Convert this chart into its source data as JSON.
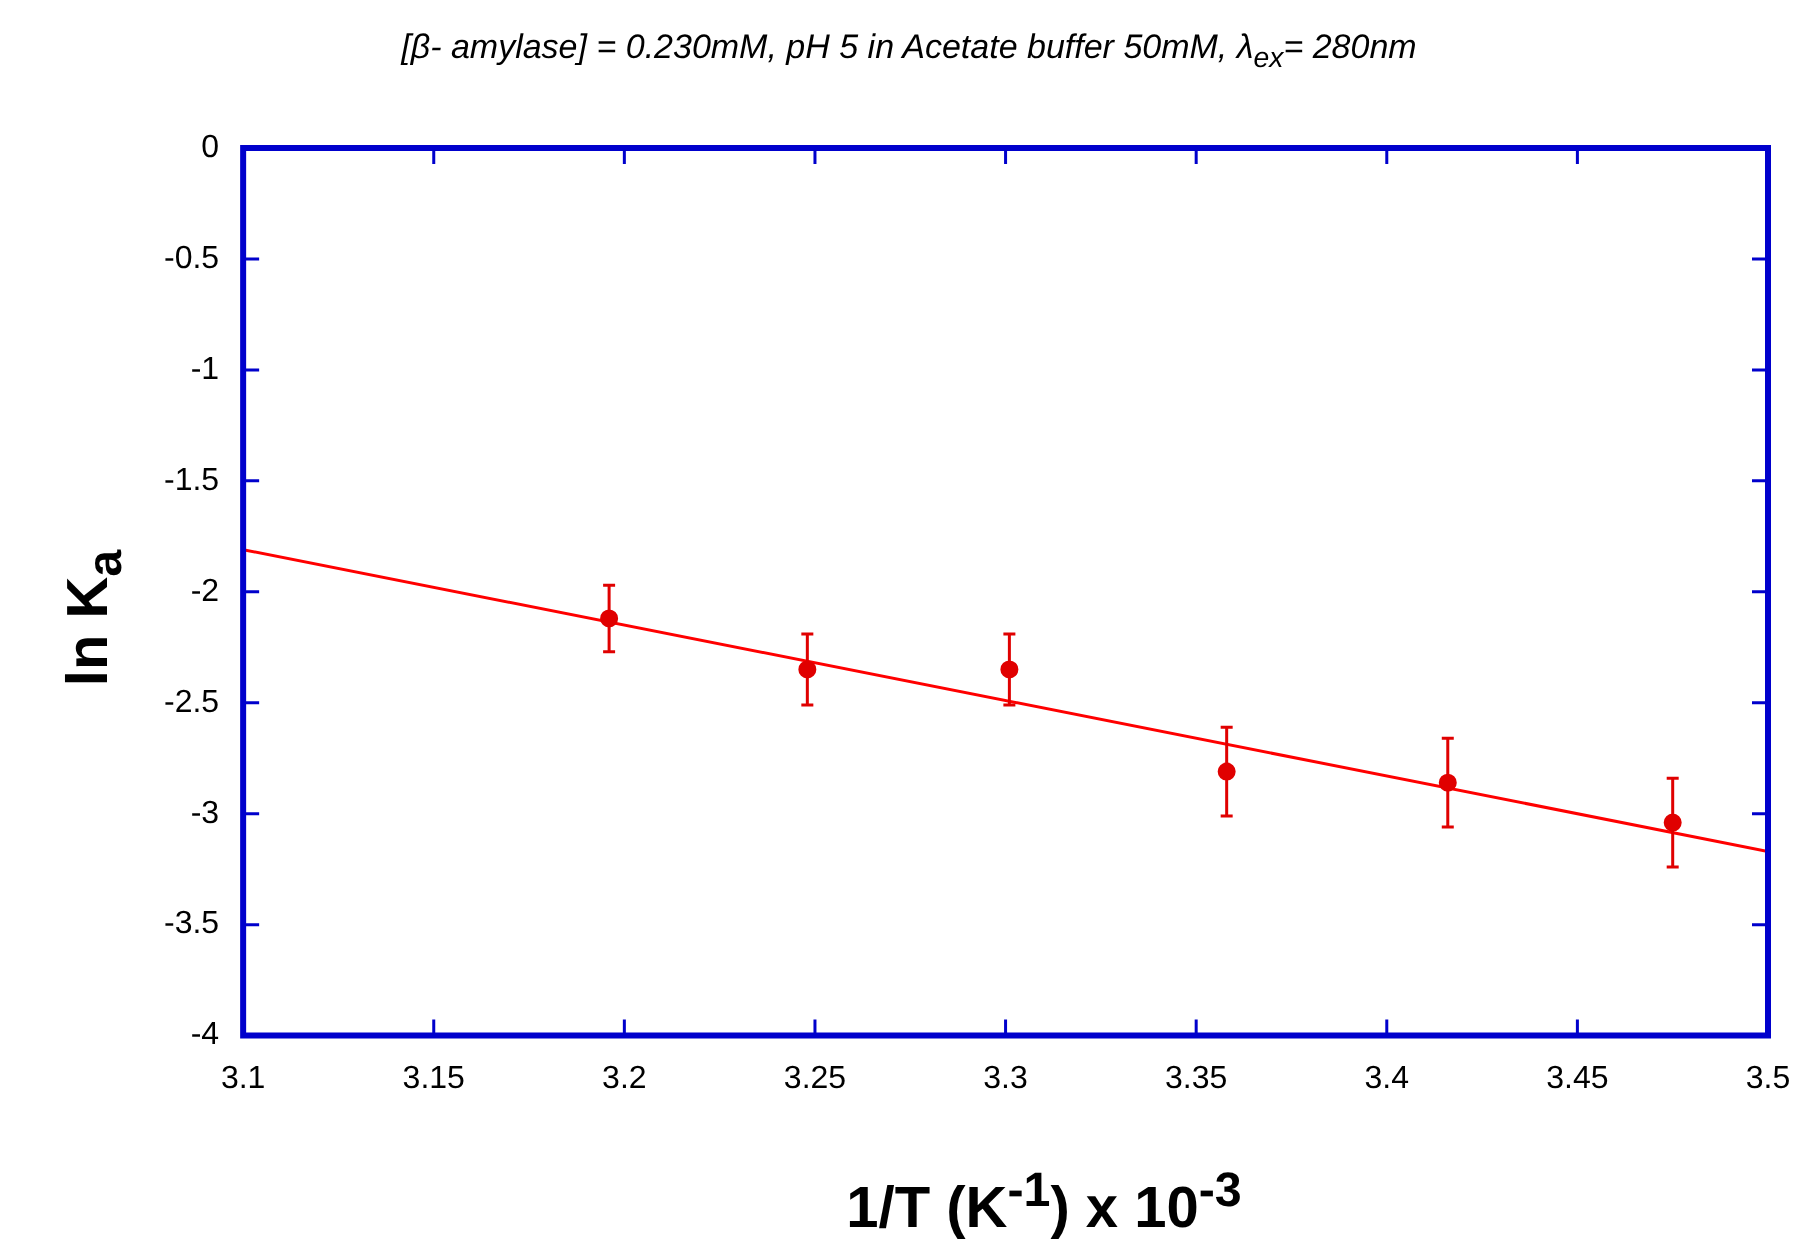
{
  "chart_data": {
    "type": "scatter",
    "title": "[β- amylase] = 0.230mM, pH 5 in Acetate buffer 50mM, λ$_{ex}$= 280nm",
    "xlabel": "1/T (K$^{-1}$) x 10$^{-3}$",
    "ylabel": "ln K$_{a}$",
    "xlim": [
      3.1,
      3.5
    ],
    "ylim": [
      -4,
      0
    ],
    "xticks": [
      3.1,
      3.15,
      3.2,
      3.25,
      3.3,
      3.35,
      3.4,
      3.45,
      3.5
    ],
    "yticks": [
      -4,
      -3.5,
      -3,
      -2.5,
      -2,
      -1.5,
      -1,
      -0.5,
      0
    ],
    "marker": "circle",
    "grid": false,
    "series": [
      {
        "type": "scatter",
        "color": "#e00000",
        "x": [
          3.196,
          3.248,
          3.301,
          3.358,
          3.416,
          3.475
        ],
        "values": [
          -2.12,
          -2.35,
          -2.35,
          -2.81,
          -2.86,
          -3.04
        ],
        "errors": [
          0.15,
          0.16,
          0.16,
          0.2,
          0.2,
          0.2
        ]
      },
      {
        "type": "line",
        "marker": "none",
        "color": "#ff0000",
        "x": [
          3.1,
          3.5
        ],
        "values": [
          -1.81,
          -3.17
        ]
      }
    ]
  }
}
